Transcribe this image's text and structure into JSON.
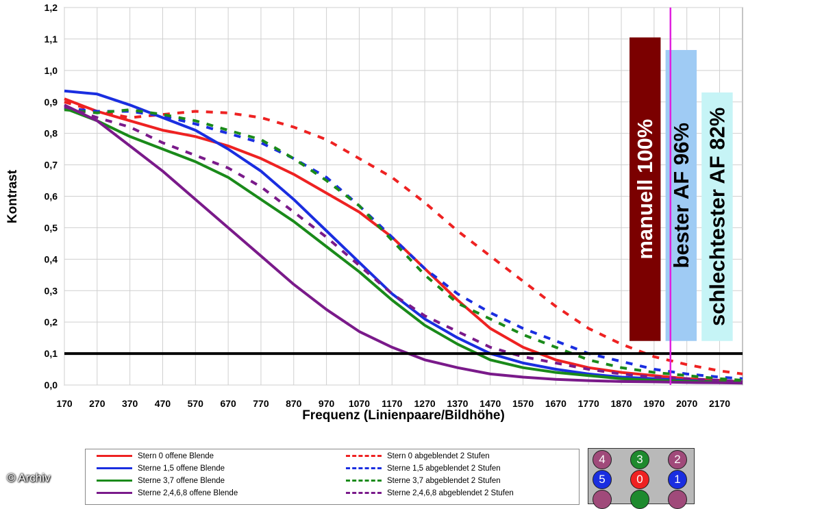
{
  "chart_data": {
    "type": "line",
    "xlabel": "Frequenz (Linienpaare/Bildhöhe)",
    "ylabel": "Kontrast",
    "xlim": [
      170,
      2240
    ],
    "ylim": [
      0,
      1.2
    ],
    "x_ticks": [
      "170",
      "270",
      "370",
      "470",
      "570",
      "670",
      "770",
      "870",
      "970",
      "1070",
      "1170",
      "1270",
      "1370",
      "1470",
      "1570",
      "1670",
      "1770",
      "1870",
      "1970",
      "2070",
      "2170"
    ],
    "y_ticks": [
      "0,0",
      "0,1",
      "0,2",
      "0,3",
      "0,4",
      "0,5",
      "0,6",
      "0,7",
      "0,8",
      "0,9",
      "1,0",
      "1,1",
      "1,2"
    ],
    "grid": true,
    "reference_line": {
      "y": 0.1,
      "color": "#000000"
    },
    "vertical_marker": {
      "x": 2020,
      "color": "#e020e0"
    },
    "series": [
      {
        "name": "Stern 0 offene Blende",
        "color": "#ee2222",
        "dash": false,
        "points": [
          [
            170,
            0.91
          ],
          [
            270,
            0.87
          ],
          [
            370,
            0.84
          ],
          [
            470,
            0.81
          ],
          [
            570,
            0.79
          ],
          [
            670,
            0.76
          ],
          [
            770,
            0.72
          ],
          [
            870,
            0.67
          ],
          [
            970,
            0.61
          ],
          [
            1070,
            0.55
          ],
          [
            1170,
            0.47
          ],
          [
            1270,
            0.37
          ],
          [
            1370,
            0.27
          ],
          [
            1470,
            0.18
          ],
          [
            1570,
            0.12
          ],
          [
            1670,
            0.08
          ],
          [
            1770,
            0.055
          ],
          [
            1870,
            0.04
          ],
          [
            1970,
            0.03
          ],
          [
            2070,
            0.02
          ],
          [
            2170,
            0.015
          ],
          [
            2240,
            0.01
          ]
        ]
      },
      {
        "name": "Sterne 1,5 offene Blende",
        "color": "#1a2ee0",
        "dash": false,
        "points": [
          [
            170,
            0.935
          ],
          [
            270,
            0.925
          ],
          [
            370,
            0.89
          ],
          [
            470,
            0.85
          ],
          [
            570,
            0.81
          ],
          [
            670,
            0.75
          ],
          [
            770,
            0.68
          ],
          [
            870,
            0.59
          ],
          [
            970,
            0.49
          ],
          [
            1070,
            0.39
          ],
          [
            1170,
            0.29
          ],
          [
            1270,
            0.21
          ],
          [
            1370,
            0.15
          ],
          [
            1470,
            0.1
          ],
          [
            1570,
            0.07
          ],
          [
            1670,
            0.05
          ],
          [
            1770,
            0.035
          ],
          [
            1870,
            0.025
          ],
          [
            1970,
            0.02
          ],
          [
            2070,
            0.015
          ],
          [
            2170,
            0.01
          ],
          [
            2240,
            0.01
          ]
        ]
      },
      {
        "name": "Sterne 3,7 offene Blende",
        "color": "#1a8a1a",
        "dash": false,
        "points": [
          [
            170,
            0.88
          ],
          [
            270,
            0.84
          ],
          [
            370,
            0.79
          ],
          [
            470,
            0.75
          ],
          [
            570,
            0.71
          ],
          [
            670,
            0.66
          ],
          [
            770,
            0.59
          ],
          [
            870,
            0.52
          ],
          [
            970,
            0.44
          ],
          [
            1070,
            0.36
          ],
          [
            1170,
            0.27
          ],
          [
            1270,
            0.19
          ],
          [
            1370,
            0.13
          ],
          [
            1470,
            0.08
          ],
          [
            1570,
            0.055
          ],
          [
            1670,
            0.04
          ],
          [
            1770,
            0.03
          ],
          [
            1870,
            0.02
          ],
          [
            1970,
            0.015
          ],
          [
            2070,
            0.012
          ],
          [
            2170,
            0.01
          ],
          [
            2240,
            0.01
          ]
        ]
      },
      {
        "name": "Sterne 2,4,6,8 offene Blende",
        "color": "#7a1a8a",
        "dash": false,
        "points": [
          [
            170,
            0.89
          ],
          [
            270,
            0.84
          ],
          [
            370,
            0.76
          ],
          [
            470,
            0.68
          ],
          [
            570,
            0.59
          ],
          [
            670,
            0.5
          ],
          [
            770,
            0.41
          ],
          [
            870,
            0.32
          ],
          [
            970,
            0.24
          ],
          [
            1070,
            0.17
          ],
          [
            1170,
            0.12
          ],
          [
            1270,
            0.08
          ],
          [
            1370,
            0.055
          ],
          [
            1470,
            0.035
          ],
          [
            1570,
            0.025
          ],
          [
            1670,
            0.018
          ],
          [
            1770,
            0.014
          ],
          [
            1870,
            0.011
          ],
          [
            1970,
            0.01
          ],
          [
            2070,
            0.008
          ],
          [
            2170,
            0.007
          ],
          [
            2240,
            0.006
          ]
        ]
      },
      {
        "name": "Stern 0 abgeblendet 2 Stufen",
        "color": "#ee2222",
        "dash": true,
        "points": [
          [
            170,
            0.9
          ],
          [
            270,
            0.87
          ],
          [
            370,
            0.85
          ],
          [
            470,
            0.86
          ],
          [
            570,
            0.87
          ],
          [
            670,
            0.865
          ],
          [
            770,
            0.85
          ],
          [
            870,
            0.82
          ],
          [
            970,
            0.78
          ],
          [
            1070,
            0.72
          ],
          [
            1170,
            0.66
          ],
          [
            1270,
            0.58
          ],
          [
            1370,
            0.49
          ],
          [
            1470,
            0.41
          ],
          [
            1570,
            0.33
          ],
          [
            1670,
            0.25
          ],
          [
            1770,
            0.18
          ],
          [
            1870,
            0.13
          ],
          [
            1970,
            0.09
          ],
          [
            2070,
            0.065
          ],
          [
            2170,
            0.045
          ],
          [
            2240,
            0.035
          ]
        ]
      },
      {
        "name": "Sterne 1,5 abgeblendet 2 Stufen",
        "color": "#1a2ee0",
        "dash": true,
        "points": [
          [
            170,
            0.88
          ],
          [
            270,
            0.87
          ],
          [
            370,
            0.87
          ],
          [
            470,
            0.855
          ],
          [
            570,
            0.83
          ],
          [
            670,
            0.8
          ],
          [
            770,
            0.77
          ],
          [
            870,
            0.72
          ],
          [
            970,
            0.66
          ],
          [
            1070,
            0.57
          ],
          [
            1170,
            0.47
          ],
          [
            1270,
            0.37
          ],
          [
            1370,
            0.29
          ],
          [
            1470,
            0.23
          ],
          [
            1570,
            0.18
          ],
          [
            1670,
            0.14
          ],
          [
            1770,
            0.1
          ],
          [
            1870,
            0.075
          ],
          [
            1970,
            0.05
          ],
          [
            2070,
            0.035
          ],
          [
            2170,
            0.025
          ],
          [
            2240,
            0.02
          ]
        ]
      },
      {
        "name": "Sterne 3,7 abgeblendet 2 Stufen",
        "color": "#1a8a1a",
        "dash": true,
        "points": [
          [
            170,
            0.875
          ],
          [
            270,
            0.865
          ],
          [
            370,
            0.875
          ],
          [
            470,
            0.86
          ],
          [
            570,
            0.84
          ],
          [
            670,
            0.81
          ],
          [
            770,
            0.78
          ],
          [
            870,
            0.72
          ],
          [
            970,
            0.65
          ],
          [
            1070,
            0.57
          ],
          [
            1170,
            0.46
          ],
          [
            1270,
            0.35
          ],
          [
            1370,
            0.26
          ],
          [
            1470,
            0.21
          ],
          [
            1570,
            0.16
          ],
          [
            1670,
            0.12
          ],
          [
            1770,
            0.08
          ],
          [
            1870,
            0.055
          ],
          [
            1970,
            0.04
          ],
          [
            2070,
            0.03
          ],
          [
            2170,
            0.02
          ],
          [
            2240,
            0.015
          ]
        ]
      },
      {
        "name": "Sterne 2,4,6,8 abgeblendet 2 Stufen",
        "color": "#7a1a8a",
        "dash": true,
        "points": [
          [
            170,
            0.885
          ],
          [
            270,
            0.85
          ],
          [
            370,
            0.82
          ],
          [
            470,
            0.77
          ],
          [
            570,
            0.73
          ],
          [
            670,
            0.69
          ],
          [
            770,
            0.63
          ],
          [
            870,
            0.55
          ],
          [
            970,
            0.47
          ],
          [
            1070,
            0.38
          ],
          [
            1170,
            0.29
          ],
          [
            1270,
            0.22
          ],
          [
            1370,
            0.17
          ],
          [
            1470,
            0.12
          ],
          [
            1570,
            0.09
          ],
          [
            1670,
            0.07
          ],
          [
            1770,
            0.05
          ],
          [
            1870,
            0.035
          ],
          [
            1970,
            0.025
          ],
          [
            2070,
            0.02
          ],
          [
            2170,
            0.015
          ],
          [
            2240,
            0.01
          ]
        ]
      }
    ],
    "bars": [
      {
        "label": "manuell 100%",
        "x0": 1895,
        "x1": 1990,
        "top": 1.105,
        "bottom": 0.14,
        "color": "#7b0000",
        "text_color": "#ffffff"
      },
      {
        "label": "bester AF 96%",
        "x0": 2005,
        "x1": 2100,
        "top": 1.065,
        "bottom": 0.14,
        "color": "#9fcbf4",
        "text_color": "#000000"
      },
      {
        "label": "schlechtester AF 82%",
        "x0": 2115,
        "x1": 2210,
        "top": 0.93,
        "bottom": 0.14,
        "color": "#c6f4f6",
        "text_color": "#000000"
      }
    ]
  },
  "star_markers": [
    {
      "label": "4",
      "color": "#a04a7a"
    },
    {
      "label": "3",
      "color": "#1e8a2e"
    },
    {
      "label": "2",
      "color": "#a04a7a"
    },
    {
      "label": "5",
      "color": "#1a2ee0"
    },
    {
      "label": "0",
      "color": "#ee2222"
    },
    {
      "label": "1",
      "color": "#1a2ee0"
    }
  ],
  "copyright": "© Archiv"
}
